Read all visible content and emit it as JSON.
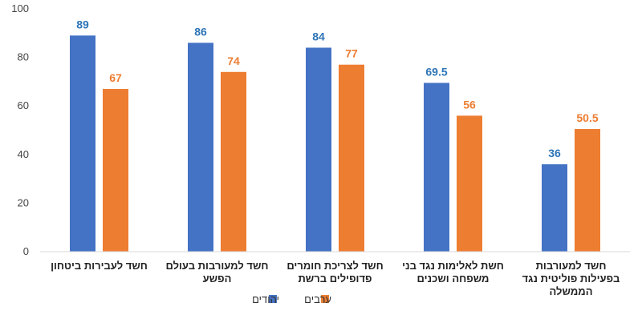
{
  "chart_data": {
    "type": "bar",
    "categories": [
      [
        "חשד לעבירות ביטחון"
      ],
      [
        "חשד למעורבות בעולם",
        "הפשע"
      ],
      [
        "חשד לצריכת חומרים",
        "פדופילים ברשת"
      ],
      [
        "חשת לאלימות נגד בני",
        "משפחה ושכנים"
      ],
      [
        "חשד למעורבות",
        "בפעילות פוליטית נגד",
        "הממשלה"
      ]
    ],
    "series": [
      {
        "name": "יהודים",
        "color": "#4472C4",
        "label_color": "#2E75B6",
        "values": [
          89,
          86,
          84,
          69.5,
          36
        ]
      },
      {
        "name": "ערבים",
        "color": "#ED7D31",
        "label_color": "#ED7D31",
        "values": [
          67,
          74,
          77,
          56,
          50.5
        ]
      }
    ],
    "ylim": [
      0,
      100
    ],
    "yticks": [
      0,
      20,
      40,
      60,
      80,
      100
    ],
    "grid": false,
    "legend_position": "bottom-center"
  }
}
